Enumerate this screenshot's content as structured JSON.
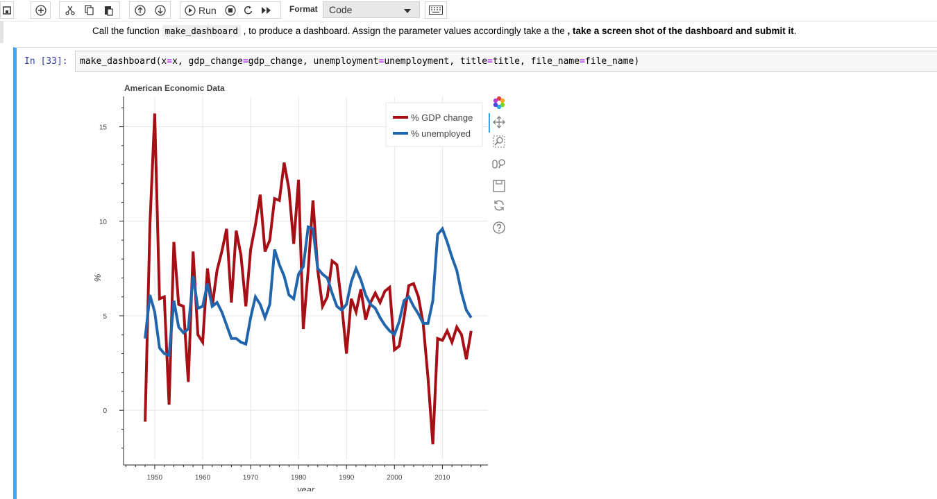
{
  "toolbar": {
    "run_label": "Run",
    "format_label": "Format",
    "cell_type": "Code"
  },
  "markdown": {
    "before": "Call the function ",
    "code": "make_dashboard",
    "middle": " , to produce a dashboard. Assign the parameter values accordingly take a the",
    "bold": " , take a screen shot of the dashboard and submit it",
    "end": "."
  },
  "cell": {
    "prompt": "In [33]:",
    "code_parts": [
      {
        "t": "make_dashboard(x",
        "op": false
      },
      {
        "t": "=",
        "op": true
      },
      {
        "t": "x, gdp_change",
        "op": false
      },
      {
        "t": "=",
        "op": true
      },
      {
        "t": "gdp_change, unemployment",
        "op": false
      },
      {
        "t": "=",
        "op": true
      },
      {
        "t": "unemployment, title",
        "op": false
      },
      {
        "t": "=",
        "op": true
      },
      {
        "t": "title, file_name",
        "op": false
      },
      {
        "t": "=",
        "op": true
      },
      {
        "t": "file_name)",
        "op": false
      }
    ]
  },
  "colors": {
    "gdp": "#a50f15",
    "unemployment": "#2166ac",
    "selected_bar": "#42a5f5"
  },
  "icons": [
    "save-icon",
    "add-cell-icon",
    "cut-icon",
    "copy-icon",
    "paste-icon",
    "move-up-icon",
    "move-down-icon",
    "run-icon",
    "stop-icon",
    "restart-icon",
    "fast-forward-icon",
    "keyboard-icon",
    "bokeh-logo-icon",
    "pan-icon",
    "box-zoom-icon",
    "wheel-zoom-icon",
    "save-plot-icon",
    "reset-icon",
    "help-icon"
  ],
  "chart_data": {
    "type": "line",
    "title": "American Economic Data",
    "xlabel": "year",
    "ylabel": "%",
    "xlim": [
      1943.5,
      2019.5
    ],
    "ylim": [
      -2.6,
      16.6
    ],
    "xticks": [
      1950,
      1960,
      1970,
      1980,
      1990,
      2000,
      2010
    ],
    "yticks": [
      0,
      5,
      10,
      15
    ],
    "grid": true,
    "legend_position": "top-right",
    "x": [
      1948,
      1949,
      1950,
      1951,
      1952,
      1953,
      1954,
      1955,
      1956,
      1957,
      1958,
      1959,
      1960,
      1961,
      1962,
      1963,
      1964,
      1965,
      1966,
      1967,
      1968,
      1969,
      1970,
      1971,
      1972,
      1973,
      1974,
      1975,
      1976,
      1977,
      1978,
      1979,
      1980,
      1981,
      1982,
      1983,
      1984,
      1985,
      1986,
      1987,
      1988,
      1989,
      1990,
      1991,
      1992,
      1993,
      1994,
      1995,
      1996,
      1997,
      1998,
      1999,
      2000,
      2001,
      2002,
      2003,
      2004,
      2005,
      2006,
      2007,
      2008,
      2009,
      2010,
      2011,
      2012,
      2013,
      2014,
      2015,
      2016
    ],
    "series": [
      {
        "name": "% GDP change",
        "values": [
          -0.6,
          9.8,
          15.7,
          5.9,
          6.0,
          0.3,
          8.9,
          5.6,
          5.5,
          1.5,
          8.4,
          4.0,
          3.6,
          7.5,
          5.5,
          7.4,
          8.4,
          9.6,
          5.7,
          9.5,
          8.2,
          5.5,
          8.5,
          9.8,
          11.4,
          8.4,
          9.0,
          11.2,
          11.1,
          13.1,
          11.7,
          8.8,
          12.2,
          4.3,
          7.4,
          11.1,
          7.4,
          5.5,
          6.0,
          7.9,
          7.7,
          5.6,
          3.0,
          5.9,
          5.2,
          6.4,
          4.8,
          5.7,
          6.2,
          5.7,
          6.3,
          6.5,
          3.2,
          3.4,
          4.9,
          6.6,
          6.7,
          6.0,
          4.6,
          1.7,
          -1.8,
          3.8,
          3.7,
          4.2,
          3.6,
          4.4,
          4.0,
          2.7,
          4.2
        ]
      },
      {
        "name": "% unemployed",
        "values": [
          3.8,
          6.1,
          5.2,
          3.3,
          3.0,
          2.9,
          5.8,
          4.4,
          4.1,
          4.3,
          7.1,
          5.4,
          5.5,
          6.7,
          5.5,
          5.7,
          5.2,
          4.5,
          3.8,
          3.8,
          3.6,
          3.5,
          4.9,
          6.0,
          5.6,
          4.9,
          5.6,
          8.5,
          7.7,
          7.1,
          6.1,
          5.9,
          7.2,
          7.6,
          9.7,
          9.6,
          7.5,
          7.2,
          7.0,
          6.2,
          5.5,
          5.3,
          5.6,
          6.8,
          7.5,
          6.9,
          6.1,
          5.6,
          5.4,
          4.9,
          4.5,
          4.2,
          4.0,
          4.7,
          5.8,
          6.0,
          5.5,
          5.1,
          4.6,
          4.6,
          5.8,
          9.3,
          9.6,
          8.9,
          8.1,
          7.4,
          6.2,
          5.3,
          4.9
        ]
      }
    ]
  }
}
